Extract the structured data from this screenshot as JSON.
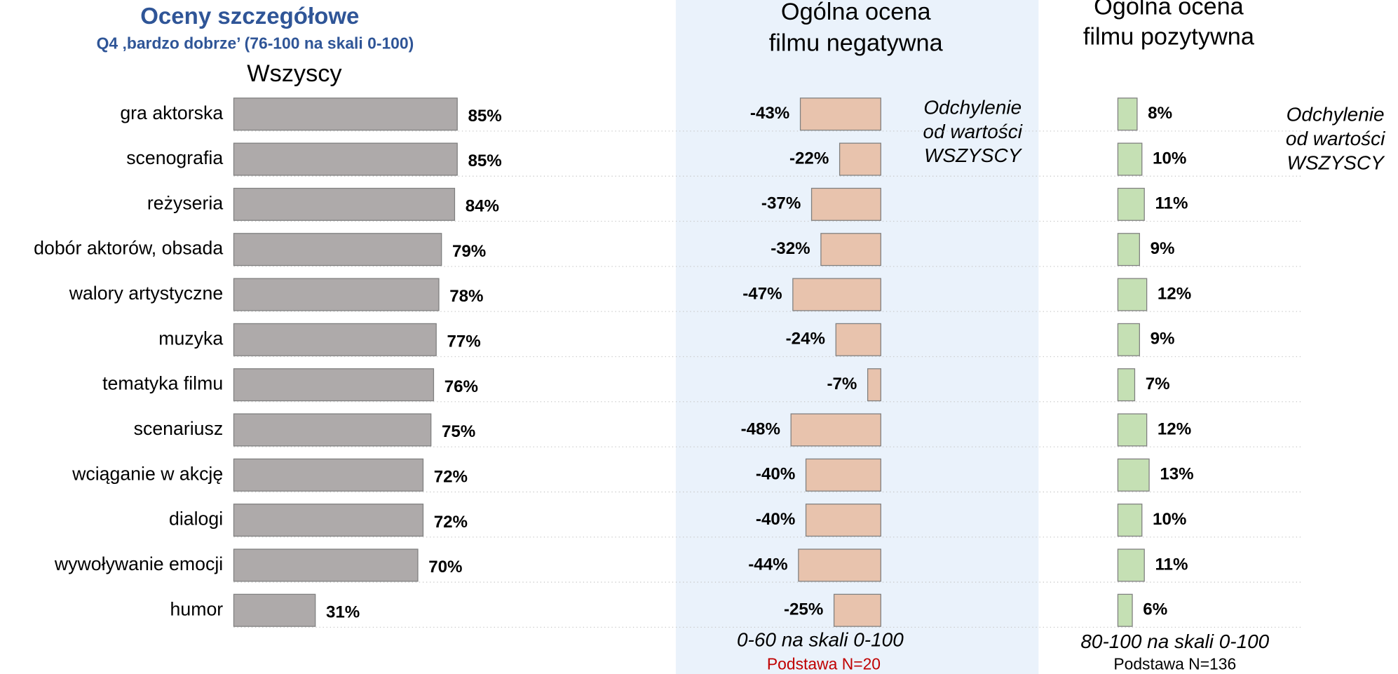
{
  "chart_data": [
    {
      "type": "bar",
      "orientation": "horizontal",
      "title": "Oceny szczegółowe",
      "subtitle": "Q4 ‚bardzo dobrze’ (76-100 na skali 0-100)",
      "label": "Wszyscy",
      "categories": [
        "gra aktorska",
        "scenografia",
        "reżyseria",
        "dobór aktorów, obsada",
        "walory artystyczne",
        "muzyka",
        "tematyka filmu",
        "scenariusz",
        "wciąganie w akcję",
        "dialogi",
        "wywoływanie emocji",
        "humor"
      ],
      "values": [
        85,
        85,
        84,
        79,
        78,
        77,
        76,
        75,
        72,
        72,
        70,
        31
      ],
      "value_labels": [
        "85%",
        "85%",
        "84%",
        "79%",
        "78%",
        "77%",
        "76%",
        "75%",
        "72%",
        "72%",
        "70%",
        "31%"
      ],
      "color": "#aeaaaa"
    },
    {
      "type": "bar",
      "orientation": "horizontal",
      "title": [
        "Ogólna ocena",
        "filmu negatywna"
      ],
      "annotation": [
        "Odchylenie",
        "od wartości",
        "WSZYSCY"
      ],
      "values": [
        -43,
        -22,
        -37,
        -32,
        -47,
        -24,
        -7,
        -48,
        -40,
        -40,
        -44,
        -25
      ],
      "value_labels": [
        "-43%",
        "-22%",
        "-37%",
        "-32%",
        "-47%",
        "-24%",
        "-7%",
        "-48%",
        "-40%",
        "-40%",
        "-44%",
        "-25%"
      ],
      "color": "#e8c3ad",
      "footer": [
        "0-60 na skali 0-100",
        "Podstawa N=20"
      ]
    },
    {
      "type": "bar",
      "orientation": "horizontal",
      "title": [
        "Ogólna ocena",
        "filmu pozytywna"
      ],
      "annotation": [
        "Odchylenie",
        "od wartości",
        "WSZYSCY"
      ],
      "values": [
        8,
        10,
        11,
        9,
        12,
        9,
        7,
        12,
        13,
        10,
        11,
        6
      ],
      "value_labels": [
        "8%",
        "10%",
        "11%",
        "9%",
        "12%",
        "9%",
        "7%",
        "12%",
        "13%",
        "10%",
        "11%",
        "6%"
      ],
      "color": "#c5e0b4",
      "footer": [
        "80-100 na skali 0-100",
        "Podstawa N=136"
      ]
    }
  ]
}
